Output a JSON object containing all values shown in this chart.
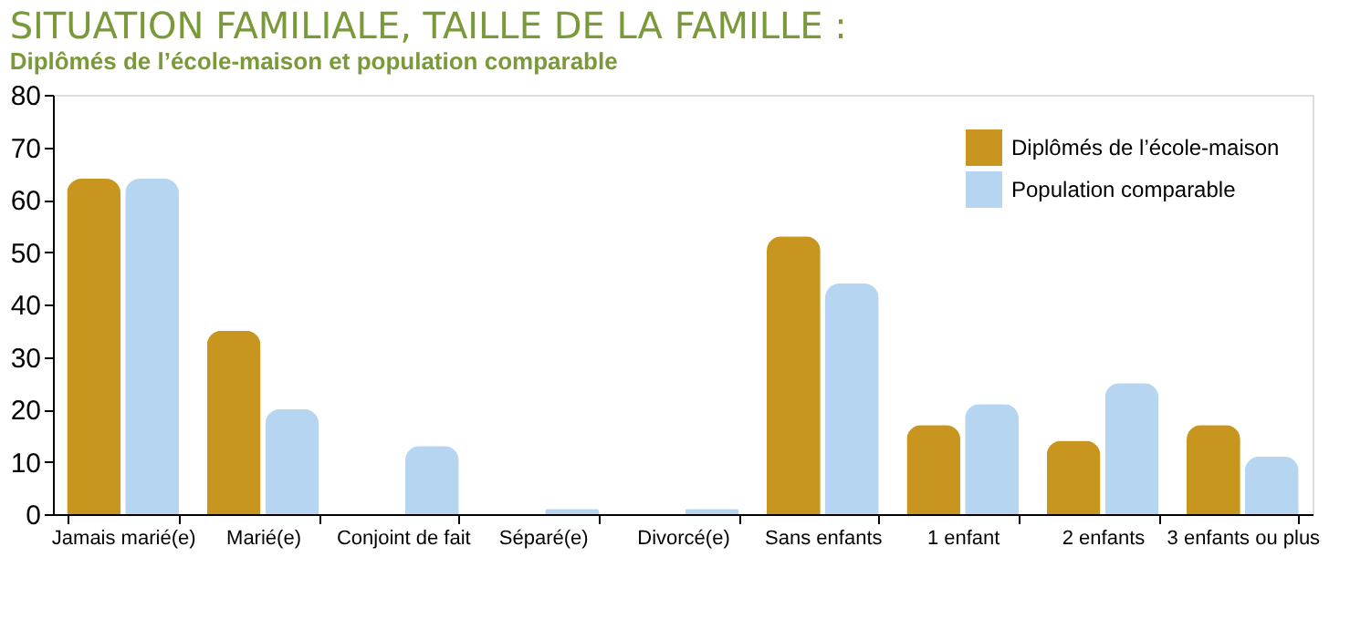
{
  "chart_data": {
    "type": "bar",
    "title": "SITUATION FAMILIALE, TAILLE DE LA FAMILLE :",
    "subtitle": "Diplômés de l’école-maison et population comparable",
    "categories": [
      "Jamais marié(e)",
      "Marié(e)",
      "Conjoint de fait",
      "Séparé(e)",
      "Divorcé(e)",
      "Sans enfants",
      "1 enfant",
      "2 enfants",
      "3 enfants ou plus"
    ],
    "series": [
      {
        "name": "Diplômés de l’école-maison",
        "color": "#c8961e",
        "values": [
          64,
          35,
          0,
          0,
          0,
          53,
          17,
          14,
          17
        ]
      },
      {
        "name": "Population comparable",
        "color": "#b5d5f0",
        "values": [
          64,
          20,
          13,
          1,
          1,
          44,
          21,
          25,
          11
        ]
      }
    ],
    "ylim": [
      0,
      80
    ],
    "yticks": [
      0,
      10,
      20,
      30,
      40,
      50,
      60,
      70,
      80
    ],
    "grid": false,
    "legend": "top right"
  }
}
